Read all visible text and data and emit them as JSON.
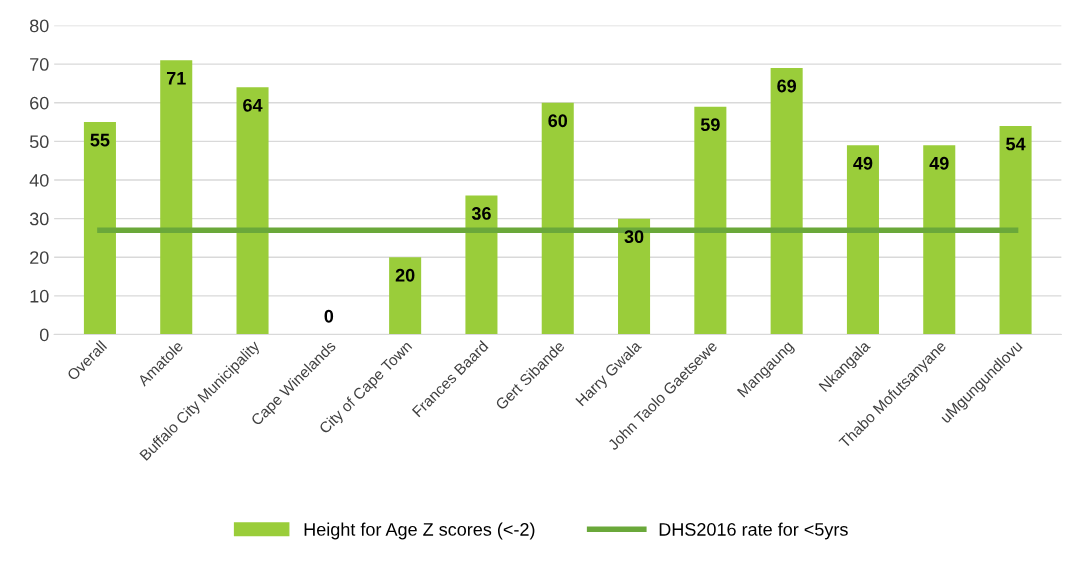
{
  "chart_data": {
    "type": "bar",
    "categories": [
      "Overall",
      "Amatole",
      "Buffalo City Municipality",
      "Cape Winelands",
      "City of Cape Town",
      "Frances Baard",
      "Gert Sibande",
      "Harry Gwala",
      "John Taolo Gaetsewe",
      "Mangaung",
      "Nkangala",
      "Thabo Mofutsanyane",
      "uMgungundlovu"
    ],
    "series": [
      {
        "name": "Height for Age Z scores (<-2)",
        "color": "#9acd3a",
        "values": [
          55,
          71,
          64,
          0,
          20,
          36,
          60,
          30,
          59,
          69,
          49,
          49,
          54
        ],
        "value_labels": [
          "55",
          "71",
          "64",
          "0",
          "20",
          "36",
          "60",
          "30",
          "59",
          "69",
          "49",
          "49",
          "54"
        ]
      },
      {
        "name": "DHS2016 rate for <5yrs",
        "type": "line",
        "color": "#6aa83a",
        "values": [
          27,
          27,
          27,
          27,
          27,
          27,
          27,
          27,
          27,
          27,
          27,
          27,
          27
        ]
      }
    ],
    "ylim": [
      0,
      80
    ],
    "yticks": [
      0,
      10,
      20,
      30,
      40,
      50,
      60,
      70,
      80
    ],
    "grid": "y",
    "legend": "bottom",
    "marker": "none",
    "line_style": "solid"
  }
}
